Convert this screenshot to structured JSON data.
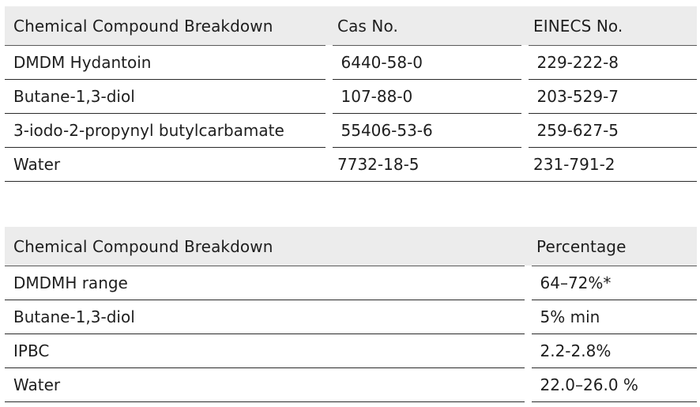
{
  "table1": {
    "headers": [
      "Chemical Compound Breakdown",
      "Cas No.",
      "EINECS No."
    ],
    "rows": [
      [
        "DMDM Hydantoin",
        "6440-58-0",
        "229-222-8"
      ],
      [
        "Butane-1,3-diol",
        "107-88-0",
        "203-529-7"
      ],
      [
        "3-iodo-2-propynyl butylcarbamate",
        "55406-53-6",
        "259-627-5"
      ],
      [
        "Water",
        "7732-18-5",
        "231-791-2"
      ]
    ]
  },
  "table2": {
    "headers": [
      "Chemical Compound Breakdown",
      "Percentage"
    ],
    "rows": [
      [
        "DMDMH  range",
        "64–72%*"
      ],
      [
        "Butane-1,3-diol",
        "5% min"
      ],
      [
        "IPBC",
        "2.2-2.8%"
      ],
      [
        "Water",
        "22.0–26.0 %"
      ]
    ]
  }
}
